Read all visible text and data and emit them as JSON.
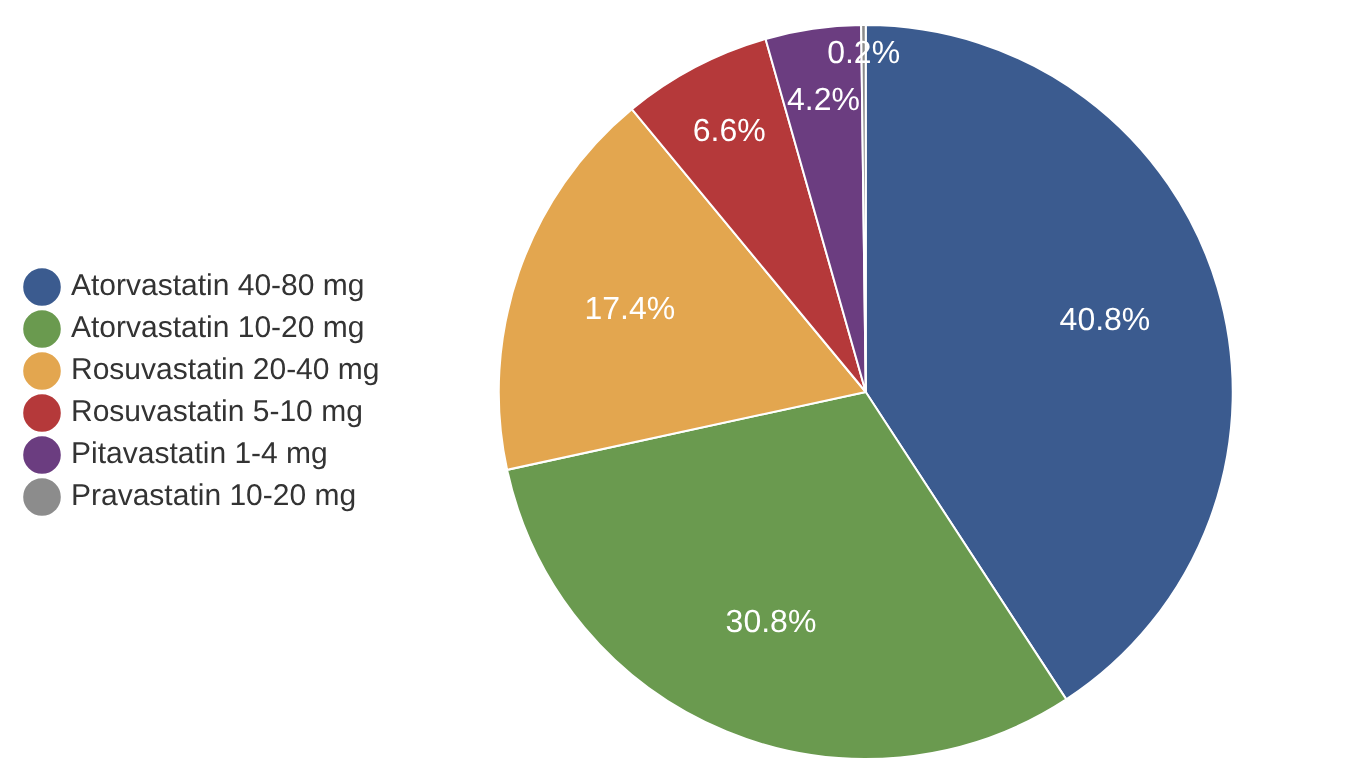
{
  "chart_data": {
    "type": "pie",
    "categories": [
      "Atorvastatin 40-80 mg",
      "Atorvastatin 10-20 mg",
      "Rosuvastatin 20-40 mg",
      "Rosuvastatin 5-10 mg",
      "Pitavastatin 1-4 mg",
      "Pravastatin 10-20 mg"
    ],
    "values": [
      40.8,
      30.8,
      17.4,
      6.6,
      4.2,
      0.2
    ],
    "value_labels": [
      "40.8%",
      "30.8%",
      "17.4%",
      "6.6%",
      "4.2%",
      "0.2%"
    ],
    "colors": [
      "#3b5b8f",
      "#6a9a4f",
      "#e3a64f",
      "#b5393a",
      "#6b3d80",
      "#8c8c8c"
    ],
    "legend": "left"
  }
}
